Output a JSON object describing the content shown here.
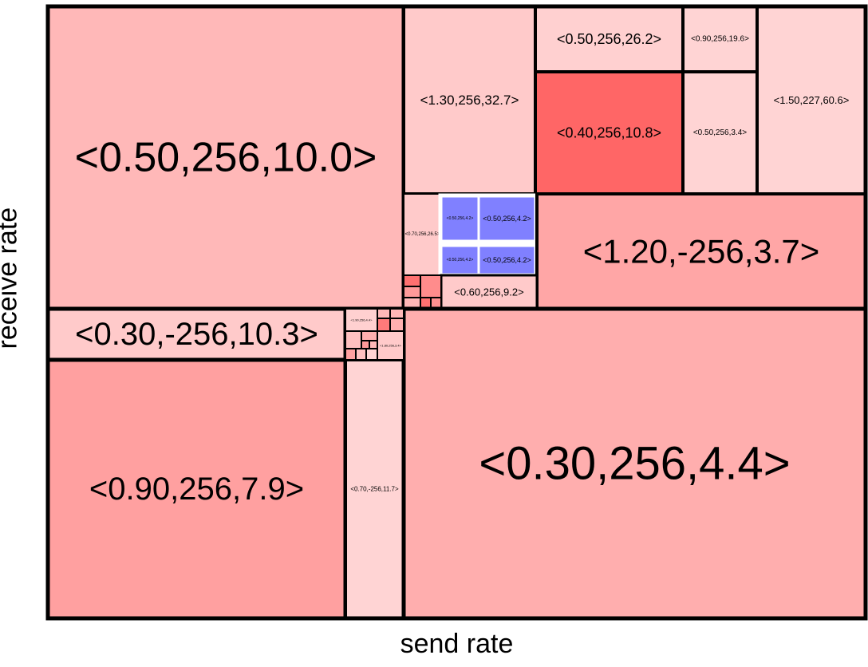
{
  "axes": {
    "x_label": "send rate",
    "y_label": "receive rate"
  },
  "colors": {
    "border": "#000000",
    "highlight_border": "#ffffff",
    "selected_fill": "#8080ff"
  },
  "cells": [
    {
      "label": "<0.50,256,10.0>",
      "fill": "#ffb8b8"
    },
    {
      "label": "<1.30,256,32.7>",
      "fill": "#ffcaca"
    },
    {
      "label": "<0.50,256,26.2>",
      "fill": "#ffd0d0"
    },
    {
      "label": "<0.90,256,19.6>",
      "fill": "#ffd4d4"
    },
    {
      "label": "<1.50,227,60.6>",
      "fill": "#ffd4d4"
    },
    {
      "label": "<0.40,256,10.8>",
      "fill": "#ff6666"
    },
    {
      "label": "<0.50,256,3.4>",
      "fill": "#ffd4d4"
    },
    {
      "label": "<0.70,256,26.5>",
      "fill": "#ffcaca"
    },
    {
      "label": "<0.50,256,4.2>",
      "fill": "#8080ff"
    },
    {
      "label": "<0.50,256,4.2>",
      "fill": "#8080ff"
    },
    {
      "label": "<0.50,256,4.2>",
      "fill": "#8080ff"
    },
    {
      "label": "<0.50,256,4.2>",
      "fill": "#8080ff"
    },
    {
      "label": "<1.20,-256,3.7>",
      "fill": "#ffa6a6"
    },
    {
      "label": "<0.60,256,9.2>",
      "fill": "#ffcaca"
    },
    {
      "label": "",
      "fill": "#ff7070"
    },
    {
      "label": "",
      "fill": "#ff8c8c"
    },
    {
      "label": "",
      "fill": "#ff9a9a"
    },
    {
      "label": "",
      "fill": "#ffb8b8"
    },
    {
      "label": "",
      "fill": "#ff7070"
    },
    {
      "label": "",
      "fill": "#ff9090"
    },
    {
      "label": "",
      "fill": "#ffaaaa"
    },
    {
      "label": "<0.30,-256,10.3>",
      "fill": "#ffcaca"
    },
    {
      "label": "<0.90,256,7.9>",
      "fill": "#ffa0a0"
    },
    {
      "label": "<0.70,-256,11.7>",
      "fill": "#ffd4d4"
    },
    {
      "label": "<0.30,256,4.4>",
      "fill": "#ffaeae"
    },
    {
      "label": "<1.90,256,4.4>",
      "fill": "#ffd0d0"
    },
    {
      "label": "",
      "fill": "#ffb8b8"
    },
    {
      "label": "",
      "fill": "#ffb8b8"
    },
    {
      "label": "",
      "fill": "#ff7a7a"
    },
    {
      "label": "",
      "fill": "#ffb0b0"
    },
    {
      "label": "",
      "fill": "#ffc0c0"
    },
    {
      "label": "<1.80,256,3.4>",
      "fill": "#ffcaca"
    },
    {
      "label": "",
      "fill": "#ffb0b0"
    },
    {
      "label": "",
      "fill": "#ffa0a0"
    },
    {
      "label": "",
      "fill": "#ffc0c0"
    },
    {
      "label": "",
      "fill": "#ffd4d4"
    },
    {
      "label": "",
      "fill": "#ff9a9a"
    },
    {
      "label": "",
      "fill": "#ffb8b8"
    }
  ]
}
